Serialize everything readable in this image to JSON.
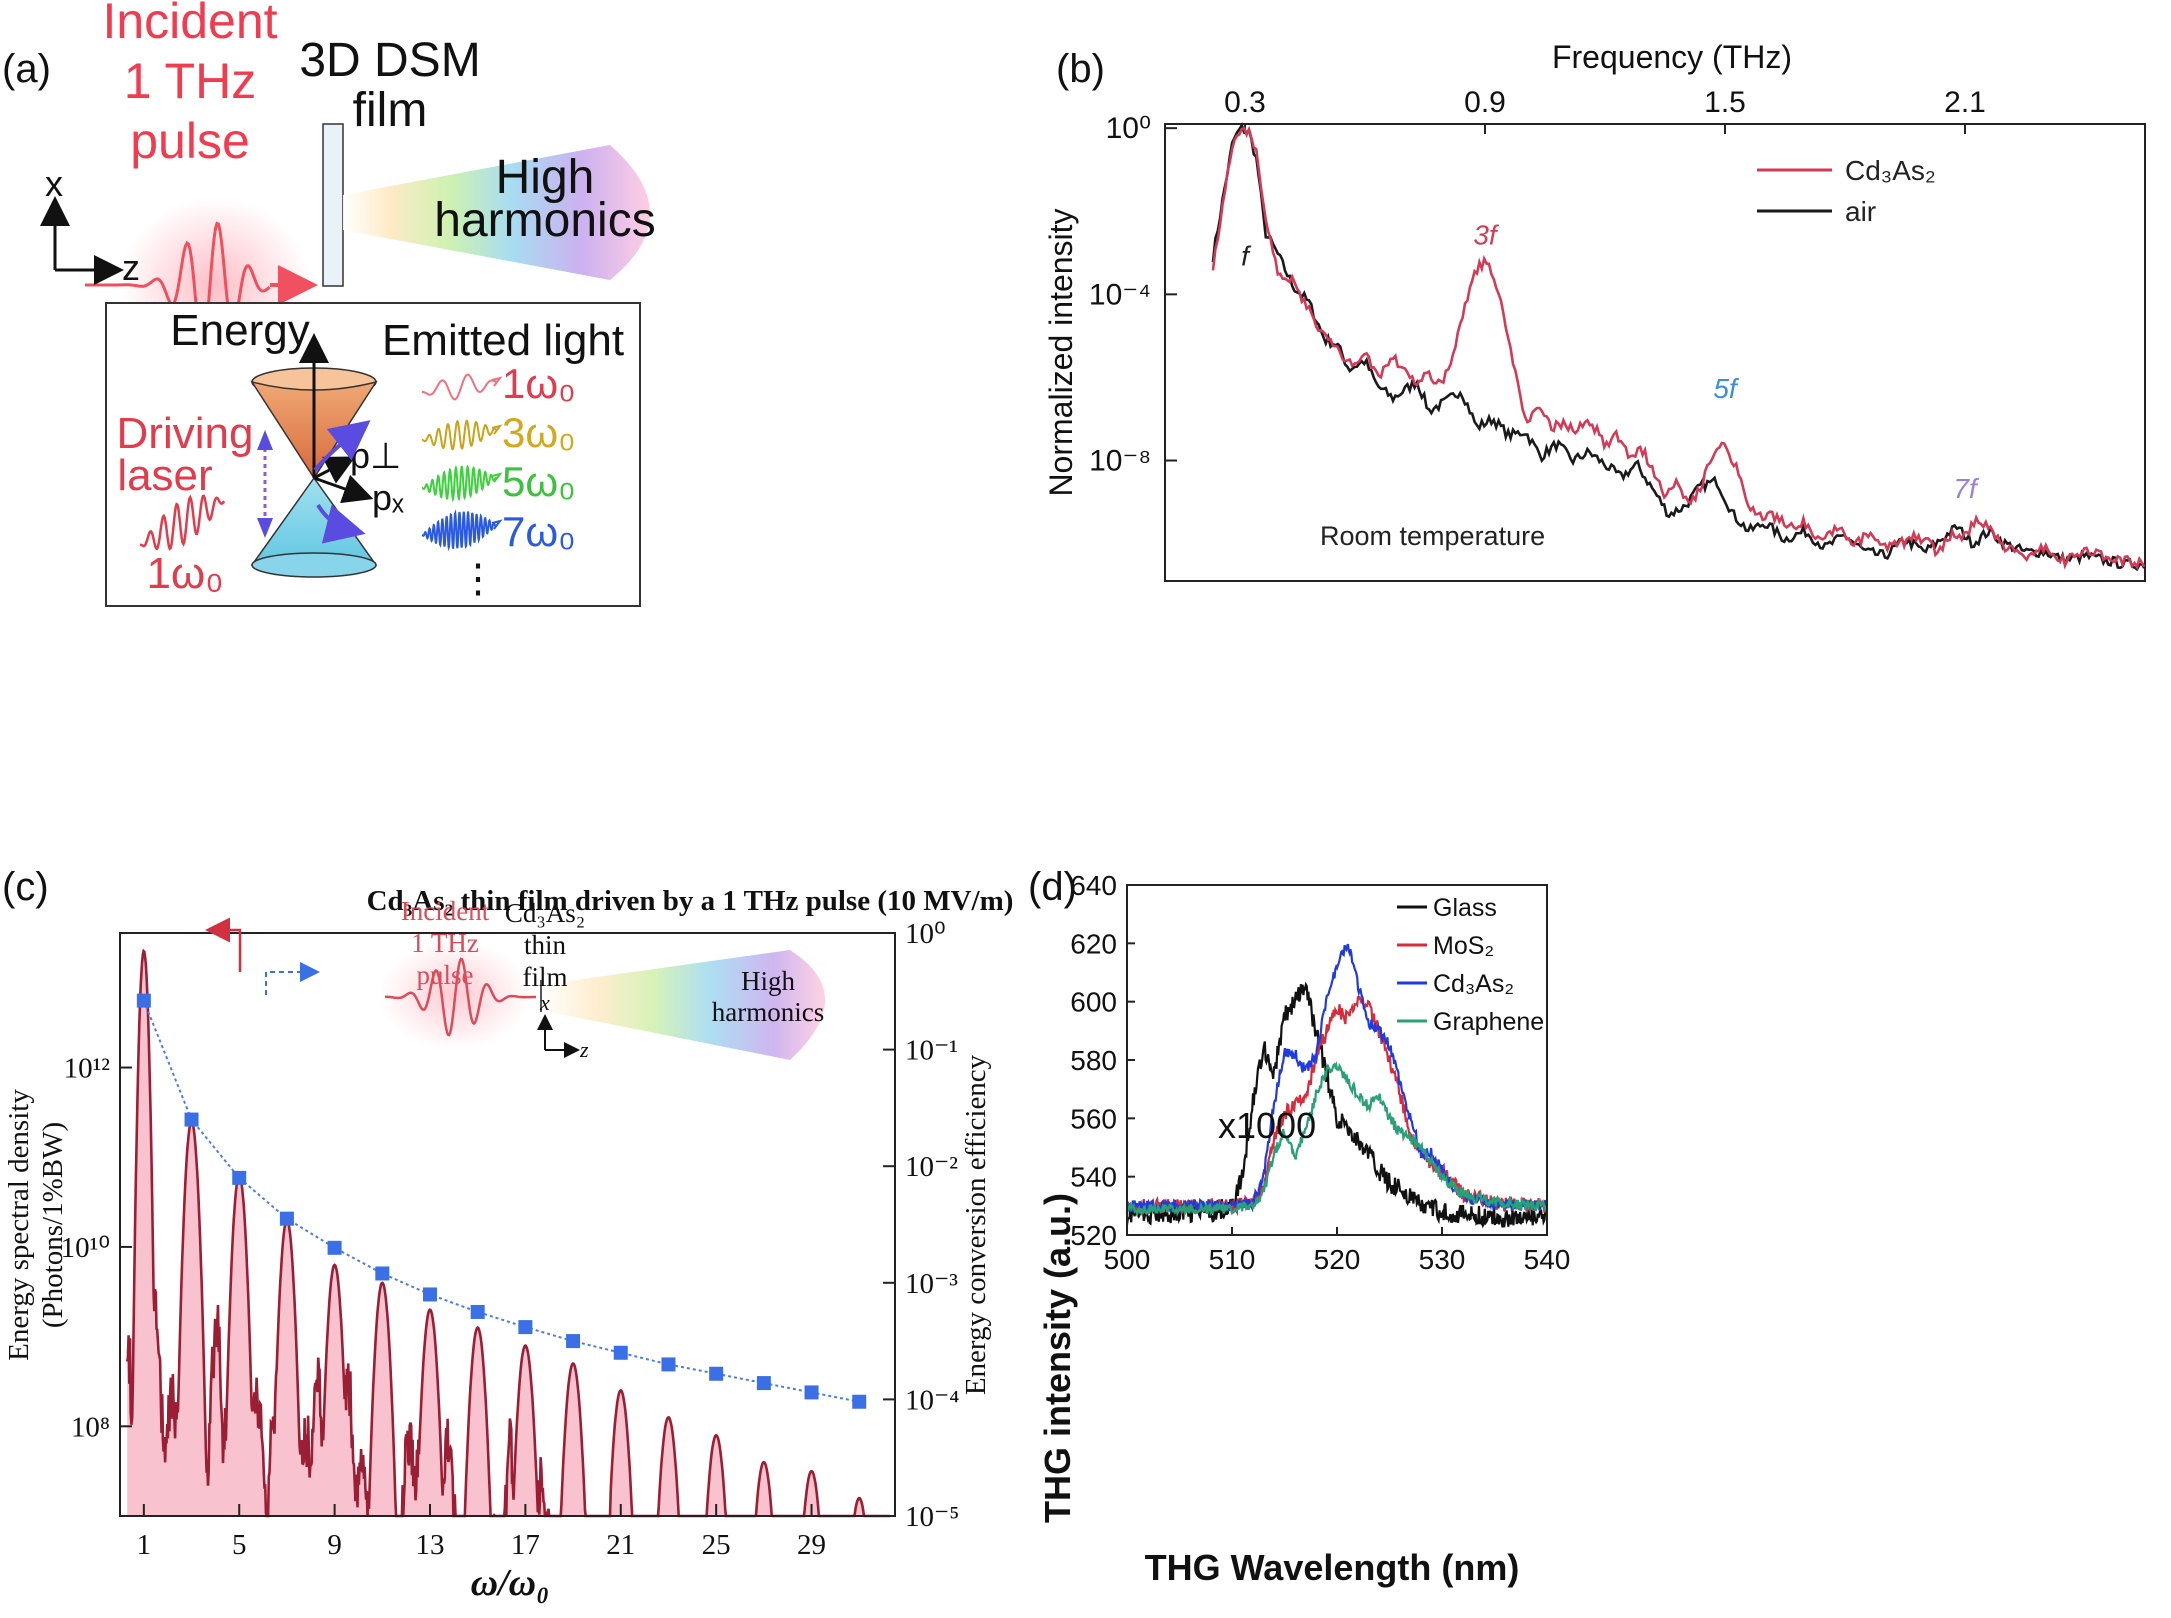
{
  "panel_a": {
    "label": "(a)",
    "incident_lines": [
      "Incident",
      "1 THz",
      "pulse"
    ],
    "film_lines": [
      "3D DSM",
      "film"
    ],
    "harmonics_lines": [
      "High",
      "harmonics"
    ],
    "axis_x": "x",
    "axis_z": "z",
    "inset": {
      "energy": "Energy",
      "emitted": "Emitted light",
      "driving_lines": [
        "Driving",
        "laser"
      ],
      "driving_freq": "1ω₀",
      "p_perp": "p⊥",
      "p_x": "pₓ",
      "orders": [
        "1ω₀",
        "3ω₀",
        "5ω₀",
        "7ω₀"
      ],
      "dots": "⋮"
    }
  },
  "chart_data": [
    {
      "id": "b",
      "type": "line",
      "label": "(b)",
      "title": "",
      "top_xlabel": "Frequency (THz)",
      "top_ticks": [
        "0.3",
        "0.9",
        "1.5",
        "2.1"
      ],
      "top_tick_values": [
        0.3,
        0.9,
        1.5,
        2.1
      ],
      "xlim": [
        0.1,
        2.55
      ],
      "ylabel": "Normalized intensity",
      "yscale": "log",
      "ylim_exp": [
        -10.9,
        0.1
      ],
      "ytick_exps": [
        0,
        -4,
        -8
      ],
      "yticks": [
        "10⁰",
        "10⁻⁴",
        "10⁻⁸"
      ],
      "legend": [
        "Cd₃As₂",
        "air"
      ],
      "annotation": "Room temperature",
      "peak_labels": [
        "f",
        "3f",
        "5f",
        "7f"
      ],
      "peak_label_x": [
        0.3,
        0.9,
        1.5,
        2.1
      ],
      "peak_label_exp": [
        -3.3,
        -2.8,
        -6.5,
        -8.9
      ],
      "series": [
        {
          "name": "Cd₃As₂",
          "color": "#d43a55",
          "x": [
            0.22,
            0.25,
            0.27,
            0.29,
            0.31,
            0.33,
            0.35,
            0.38,
            0.42,
            0.46,
            0.5,
            0.53,
            0.56,
            0.6,
            0.63,
            0.67,
            0.7,
            0.73,
            0.76,
            0.79,
            0.82,
            0.85,
            0.88,
            0.9,
            0.92,
            0.95,
            0.98,
            1.0,
            1.03,
            1.07,
            1.1,
            1.13,
            1.16,
            1.2,
            1.23,
            1.26,
            1.29,
            1.32,
            1.35,
            1.38,
            1.41,
            1.44,
            1.47,
            1.5,
            1.53,
            1.56,
            1.59,
            1.62,
            1.66,
            1.7,
            1.74,
            1.78,
            1.82,
            1.86,
            1.9,
            1.94,
            1.97,
            2.0,
            2.03,
            2.07,
            2.1,
            2.13,
            2.16,
            2.2,
            2.25,
            2.3,
            2.35,
            2.4,
            2.45,
            2.5,
            2.55
          ],
          "y": [
            -3.3,
            -1.5,
            -0.4,
            -0.05,
            -0.05,
            -0.6,
            -2.2,
            -3.4,
            -3.7,
            -4.4,
            -5.0,
            -5.3,
            -5.7,
            -5.4,
            -6.0,
            -5.5,
            -5.8,
            -6.2,
            -5.9,
            -6.2,
            -5.5,
            -4.2,
            -3.4,
            -3.2,
            -3.5,
            -4.6,
            -6.1,
            -7.0,
            -6.8,
            -7.2,
            -7.1,
            -7.3,
            -7.0,
            -7.6,
            -7.4,
            -7.9,
            -7.7,
            -8.2,
            -8.8,
            -8.4,
            -9.1,
            -8.6,
            -7.8,
            -7.6,
            -8.2,
            -9.1,
            -9.4,
            -9.3,
            -9.6,
            -9.5,
            -9.9,
            -9.6,
            -10.0,
            -9.8,
            -10.1,
            -10.0,
            -9.8,
            -9.9,
            -10.2,
            -9.8,
            -9.8,
            -9.4,
            -9.6,
            -10.1,
            -10.3,
            -10.1,
            -10.4,
            -10.2,
            -10.3,
            -10.4,
            -10.5
          ]
        },
        {
          "name": "air",
          "color": "#1a1a1a",
          "x": [
            0.22,
            0.25,
            0.27,
            0.29,
            0.31,
            0.33,
            0.35,
            0.38,
            0.42,
            0.46,
            0.5,
            0.53,
            0.56,
            0.6,
            0.63,
            0.67,
            0.7,
            0.73,
            0.76,
            0.8,
            0.84,
            0.88,
            0.92,
            0.96,
            1.0,
            1.04,
            1.08,
            1.12,
            1.16,
            1.2,
            1.24,
            1.28,
            1.32,
            1.36,
            1.4,
            1.44,
            1.48,
            1.52,
            1.56,
            1.6,
            1.65,
            1.7,
            1.75,
            1.8,
            1.85,
            1.9,
            1.95,
            2.0,
            2.04,
            2.08,
            2.12,
            2.16,
            2.2,
            2.25,
            2.3,
            2.35,
            2.4,
            2.45,
            2.5,
            2.55
          ],
          "y": [
            -3.1,
            -1.4,
            -0.3,
            0.0,
            -0.1,
            -0.8,
            -2.5,
            -3.0,
            -3.8,
            -4.2,
            -5.1,
            -5.2,
            -5.8,
            -5.6,
            -6.2,
            -6.5,
            -6.3,
            -6.1,
            -6.8,
            -6.6,
            -6.3,
            -7.2,
            -7.0,
            -7.4,
            -7.3,
            -7.9,
            -7.6,
            -8.0,
            -7.8,
            -8.1,
            -8.4,
            -8.1,
            -8.7,
            -9.3,
            -9.1,
            -8.6,
            -8.5,
            -9.3,
            -9.7,
            -9.5,
            -9.9,
            -9.7,
            -10.1,
            -9.8,
            -10.2,
            -10.3,
            -9.9,
            -10.2,
            -9.9,
            -9.6,
            -10.0,
            -9.7,
            -10.0,
            -10.2,
            -10.2,
            -10.4,
            -10.3,
            -10.4,
            -10.5,
            -10.5
          ]
        }
      ]
    },
    {
      "id": "c",
      "type": "area",
      "label": "(c)",
      "title": "Cd₃As₂ thin film driven by a 1 THz pulse (10 MV/m)",
      "xlabel": "ω/ω₀",
      "xlim": [
        0,
        32.5
      ],
      "xticks": [
        1,
        5,
        9,
        13,
        17,
        21,
        25,
        29
      ],
      "ylabel_left_lines": [
        "Energy spectral density",
        "(Photons/1%BW)"
      ],
      "ylim_left_exp": [
        7,
        13.5
      ],
      "yticks_left_exp": [
        8,
        10,
        12
      ],
      "yticks_left": [
        "10⁸",
        "10¹⁰",
        "10¹²"
      ],
      "ylabel_right": "Energy conversion efficiency",
      "ylim_right_exp": [
        -5,
        0
      ],
      "yticks_right_exp": [
        0,
        -1,
        -2,
        -3,
        -4,
        -5
      ],
      "yticks_right": [
        "10⁰",
        "10⁻¹",
        "10⁻²",
        "10⁻³",
        "10⁻⁴",
        "10⁻⁵"
      ],
      "inset_incident_lines": [
        "Incident",
        "1 THz",
        "pulse"
      ],
      "inset_film_lines": [
        "Cd₃As₂",
        "thin",
        "film"
      ],
      "inset_harmonics_lines": [
        "High",
        "harmonics"
      ],
      "inset_axis_x": "x",
      "inset_axis_z": "z",
      "peaks": [
        1,
        3,
        5,
        7,
        9,
        11,
        13,
        15,
        17,
        19,
        21,
        23,
        25,
        27,
        29,
        31
      ],
      "peak_heights_exp": [
        13.3,
        11.4,
        10.8,
        10.3,
        9.8,
        9.6,
        9.3,
        9.1,
        8.9,
        8.7,
        8.4,
        8.1,
        7.9,
        7.6,
        7.5,
        7.2
      ],
      "baseline_exp": 9.8,
      "baseline_decay": 0.115,
      "efficiency_exp": [
        -0.58,
        -1.6,
        -2.1,
        -2.45,
        -2.7,
        -2.92,
        -3.1,
        -3.25,
        -3.38,
        -3.5,
        -3.6,
        -3.7,
        -3.78,
        -3.86,
        -3.94,
        -4.02
      ]
    },
    {
      "id": "d",
      "type": "line",
      "label": "(d)",
      "xlabel": "THG Wavelength (nm)",
      "ylabel": "THG intensity (a.u.)",
      "xlim": [
        500,
        540
      ],
      "xticks": [
        500,
        510,
        520,
        530,
        540
      ],
      "ylim": [
        520,
        640
      ],
      "yticks": [
        520,
        540,
        560,
        580,
        600,
        620,
        640
      ],
      "annotation": "x1000",
      "legend": [
        "Glass",
        "MoS₂",
        "Cd₃As₂",
        "Graphene"
      ],
      "series": [
        {
          "name": "Glass",
          "color": "#111111",
          "noise": 3.5,
          "x": [
            500,
            508,
            510,
            511,
            512,
            513,
            514,
            515,
            516,
            517,
            518,
            519,
            520,
            521,
            522,
            523,
            524,
            525,
            526,
            527,
            528,
            530,
            532,
            535,
            540
          ],
          "y": [
            527,
            528,
            530,
            540,
            566,
            585,
            575,
            595,
            600,
            605,
            590,
            575,
            560,
            557,
            552,
            548,
            542,
            538,
            536,
            533,
            530,
            528,
            527,
            526,
            526
          ]
        },
        {
          "name": "MoS₂",
          "color": "#d62c3c",
          "noise": 2.5,
          "x": [
            500,
            510,
            512,
            513,
            514,
            515,
            516,
            517,
            518,
            519,
            520,
            521,
            522,
            523,
            524,
            525,
            526,
            527,
            528,
            529,
            530,
            531,
            532,
            535,
            540
          ],
          "y": [
            530,
            530,
            531,
            537,
            552,
            562,
            564,
            568,
            580,
            590,
            598,
            594,
            600,
            598,
            590,
            580,
            568,
            555,
            547,
            545,
            542,
            538,
            534,
            531,
            530
          ]
        },
        {
          "name": "Cd₃As₂",
          "color": "#1f3be0",
          "noise": 2.0,
          "x": [
            500,
            510,
            512,
            513,
            514,
            515,
            516,
            517,
            518,
            519,
            520,
            521,
            522,
            523,
            524,
            525,
            526,
            527,
            528,
            529,
            530,
            531,
            532,
            535,
            540
          ],
          "y": [
            530,
            530,
            531,
            540,
            565,
            583,
            582,
            576,
            582,
            600,
            613,
            620,
            606,
            593,
            590,
            585,
            572,
            560,
            548,
            548,
            542,
            537,
            533,
            531,
            530
          ]
        },
        {
          "name": "Graphene",
          "color": "#2aa077",
          "noise": 1.8,
          "x": [
            500,
            510,
            512,
            513,
            514,
            515,
            516,
            517,
            518,
            519,
            520,
            521,
            522,
            523,
            524,
            525,
            526,
            527,
            528,
            529,
            530,
            531,
            532,
            535,
            540
          ],
          "y": [
            529,
            529,
            530,
            535,
            548,
            556,
            547,
            556,
            568,
            576,
            578,
            573,
            568,
            564,
            568,
            560,
            555,
            553,
            550,
            545,
            540,
            537,
            534,
            531,
            530
          ]
        }
      ]
    }
  ]
}
